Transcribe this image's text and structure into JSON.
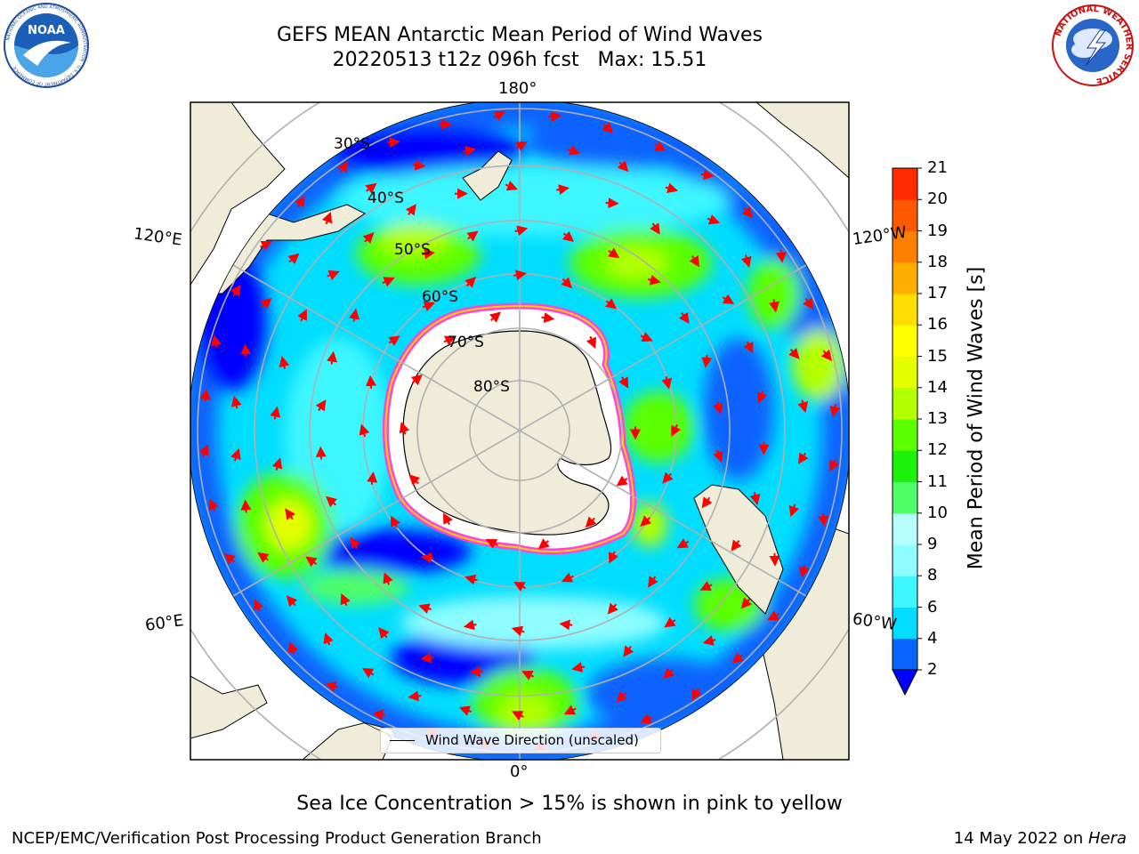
{
  "header": {
    "title_line1": "GEFS MEAN Antarctic Mean Period of Wind Waves",
    "title_line2": "20220513 t12z 096h fcst   Max: 15.51"
  },
  "logos": {
    "left": "NOAA",
    "left_ring_text": "NATIONAL OCEANIC AND ATMOSPHERIC ADMINISTRATION · U.S. DEPARTMENT OF COMMERCE",
    "right_ring_text": "NATIONAL WEATHER SERVICE"
  },
  "map": {
    "projection": "south-polar-stereographic",
    "longitude_labels": {
      "top": "180°",
      "bottom": "0°",
      "upper_left": "120°E",
      "lower_left": "60°E",
      "upper_right": "120°W",
      "lower_right": "60°W"
    },
    "latitude_labels": [
      "30°S",
      "40°S",
      "50°S",
      "60°S",
      "70°S",
      "80°S"
    ],
    "legend": {
      "label": "Wind Wave Direction (unscaled)"
    },
    "arrow_color": "#ff0000",
    "land_color": "#efedda",
    "sea_ice_color": "#ff44dd"
  },
  "colorbar": {
    "label": "Mean Period of Wind Waves [s]",
    "ticks": [
      "21",
      "20",
      "19",
      "18",
      "17",
      "16",
      "15",
      "14",
      "13",
      "12",
      "11",
      "10",
      "9",
      "8",
      "6",
      "4",
      "2"
    ],
    "levels": [
      2,
      4,
      6,
      8,
      9,
      10,
      11,
      12,
      13,
      14,
      15,
      16,
      17,
      18,
      19,
      20,
      21
    ],
    "colors": [
      "#0000ff",
      "#0a64ff",
      "#00ddff",
      "#3df6ff",
      "#8efdff",
      "#b6fdff",
      "#50fe68",
      "#1cf20c",
      "#5cff00",
      "#b4ff00",
      "#e6ff00",
      "#ffff00",
      "#ffdd00",
      "#ffae00",
      "#ff8000",
      "#ff5a00",
      "#ff2c00",
      "#ff0000"
    ]
  },
  "notes": {
    "sea_ice": "Sea Ice Concentration > 15% is shown in pink to yellow"
  },
  "footer": {
    "left": "NCEP/EMC/Verification Post Processing Product Generation Branch",
    "date": "14 May 2022 on ",
    "machine": "Hera"
  }
}
